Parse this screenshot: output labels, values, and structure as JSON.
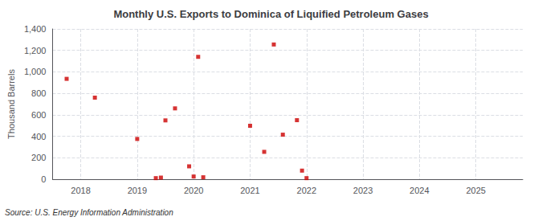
{
  "chart_data": {
    "type": "scatter",
    "title": "Monthly U.S. Exports to Dominica of Liquified Petroleum Gases",
    "ylabel": "Thousand Barrels",
    "source": "Source: U.S. Energy Information Administration",
    "x": [
      2017.75,
      2018.25,
      2019.0,
      2019.33,
      2019.42,
      2019.5,
      2019.67,
      2019.92,
      2020.0,
      2020.08,
      2020.17,
      2021.0,
      2021.25,
      2021.42,
      2021.58,
      2021.83,
      2021.92,
      2022.0
    ],
    "values": [
      935,
      760,
      375,
      10,
      15,
      548,
      660,
      120,
      25,
      1140,
      18,
      498,
      255,
      1255,
      415,
      550,
      80,
      10
    ],
    "color": "#cc0000",
    "marker": "square",
    "xlim": [
      2017.5,
      2025.83
    ],
    "xticks": [
      2018,
      2019,
      2020,
      2021,
      2022,
      2023,
      2024,
      2025
    ],
    "ylim": [
      0,
      1400
    ],
    "yticks": [
      0,
      200,
      400,
      600,
      800,
      {
        "value": 1000,
        "label": "1,000"
      },
      {
        "value": 1200,
        "label": "1,200"
      },
      {
        "value": 1400,
        "label": "1,400"
      }
    ],
    "grid": true
  }
}
